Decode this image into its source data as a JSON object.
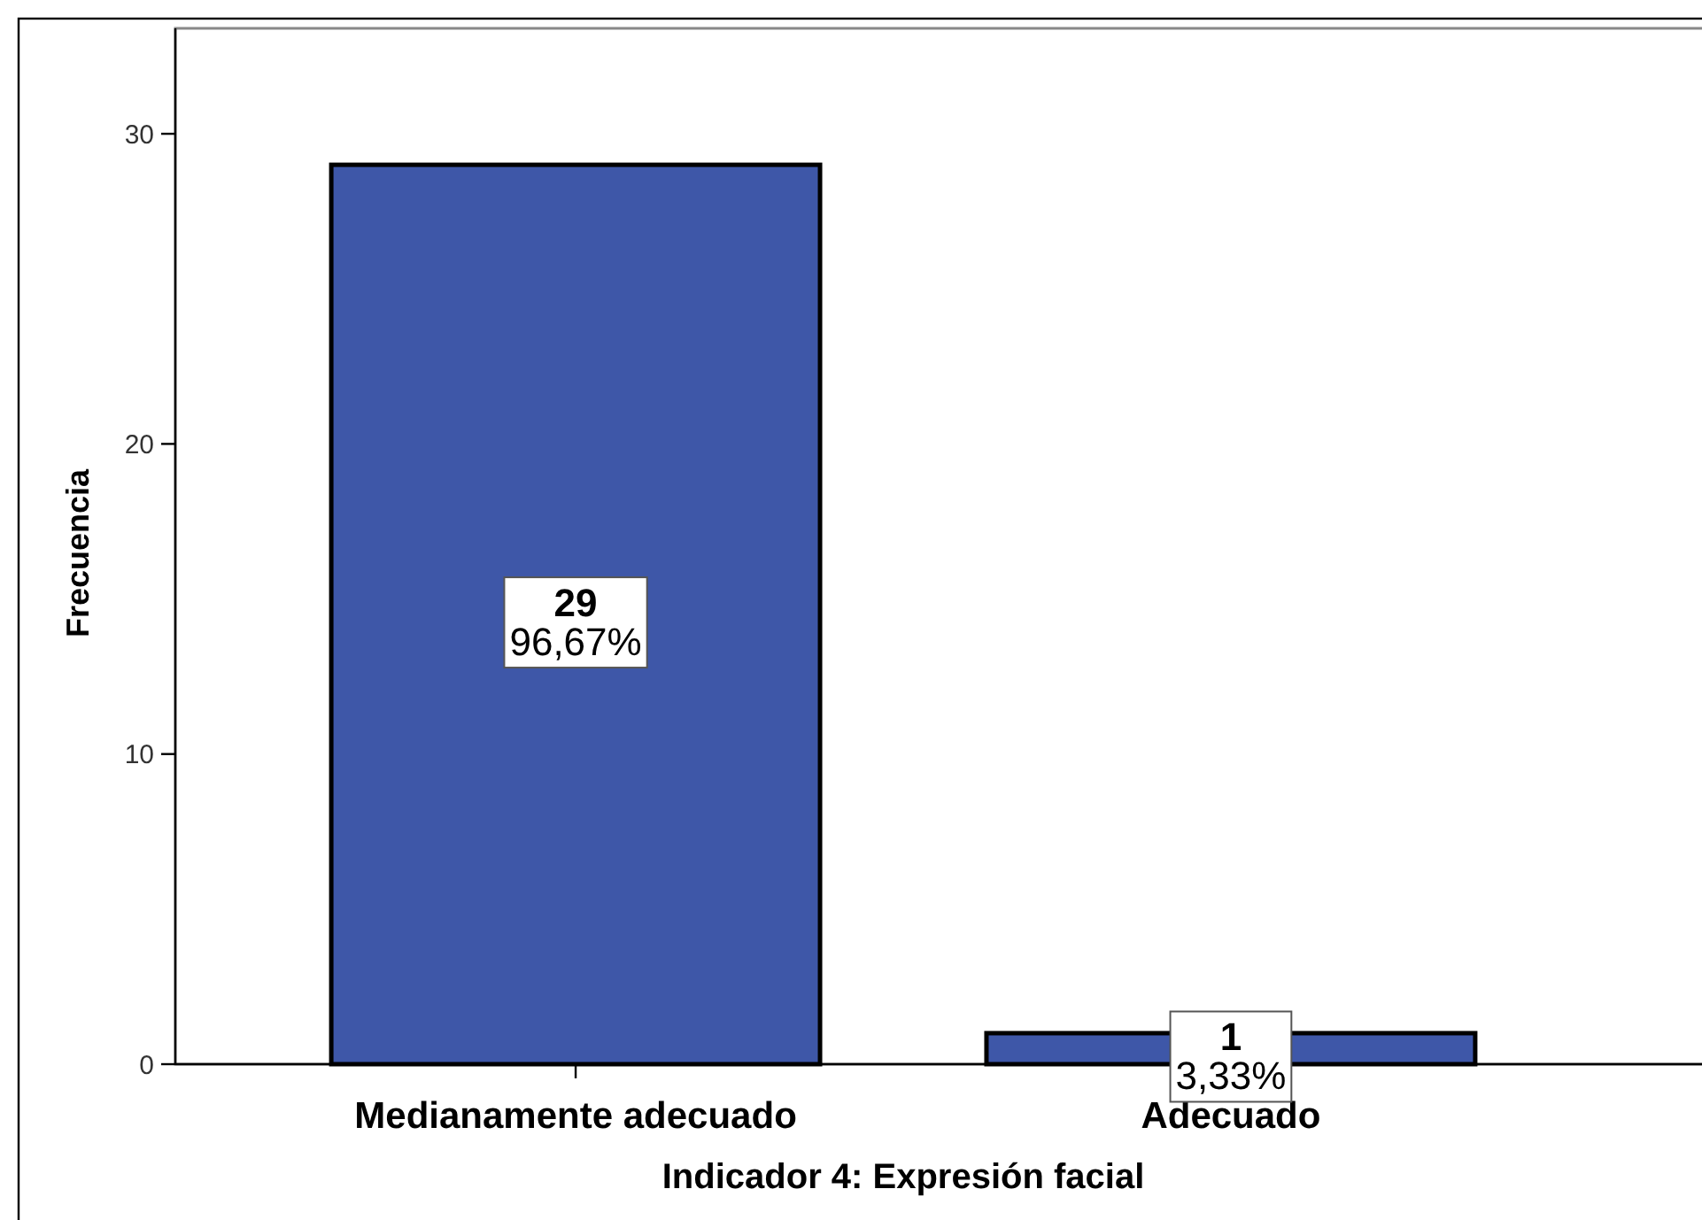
{
  "chart_data": {
    "type": "bar",
    "xlabel": "Indicador 4: Expresión facial",
    "ylabel": "Frecuencia",
    "categories": [
      "Medianamente adecuado",
      "Adecuado"
    ],
    "values": [
      29,
      1
    ],
    "color": "#3e57a8",
    "value_labels": [
      "29\n96,67%",
      "1\n3,33%"
    ],
    "ylim": [
      0,
      33.4
    ],
    "yticks": [
      0,
      10,
      20,
      30
    ]
  }
}
